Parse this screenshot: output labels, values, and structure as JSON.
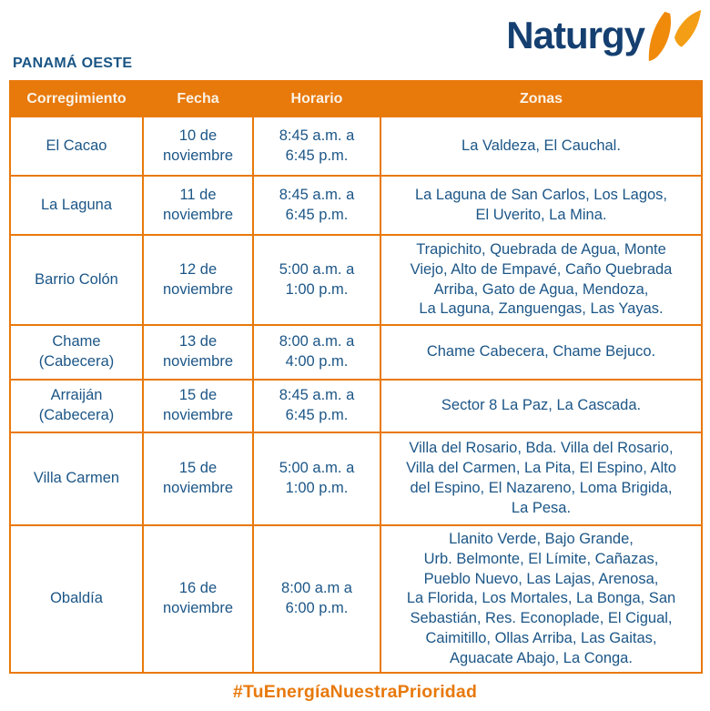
{
  "page": {
    "region_title": "PANAMÁ OESTE",
    "hashtag": "#TuEnergíaNuestraPrioridad"
  },
  "brand": {
    "logo_text": "Naturgy",
    "logo_icon": "butterfly-icon",
    "blue": "#143F70",
    "orange": "#E8790B",
    "text_blue": "#1C5687",
    "header_text": "#FAF3E6"
  },
  "table": {
    "headers": [
      "Corregimiento",
      "Fecha",
      "Horario",
      "Zonas"
    ],
    "columns": [
      "corregimiento",
      "fecha",
      "horario",
      "zonas"
    ],
    "rows": [
      {
        "corregimiento": "El Cacao",
        "fecha": "10 de\nnoviembre",
        "horario": "8:45 a.m. a\n6:45 p.m.",
        "zonas": "La Valdeza, El Cauchal."
      },
      {
        "corregimiento": "La Laguna",
        "fecha": "11 de\nnoviembre",
        "horario": "8:45 a.m. a\n6:45 p.m.",
        "zonas": "La Laguna de San Carlos, Los Lagos,\nEl Uverito, La Mina."
      },
      {
        "corregimiento": "Barrio Colón",
        "fecha": "12 de\nnoviembre",
        "horario": "5:00 a.m. a\n1:00 p.m.",
        "zonas": "Trapichito, Quebrada de Agua, Monte\nViejo, Alto de Empavé, Caño Quebrada\nArriba, Gato de Agua, Mendoza,\nLa Laguna, Zanguengas, Las Yayas."
      },
      {
        "corregimiento": "Chame\n(Cabecera)",
        "fecha": "13 de\nnoviembre",
        "horario": "8:00 a.m. a\n4:00 p.m.",
        "zonas": "Chame Cabecera, Chame Bejuco."
      },
      {
        "corregimiento": "Arraiján\n(Cabecera)",
        "fecha": "15 de\nnoviembre",
        "horario": "8:45 a.m. a\n6:45 p.m.",
        "zonas": "Sector 8 La Paz, La Cascada."
      },
      {
        "corregimiento": "Villa Carmen",
        "fecha": "15 de\nnoviembre",
        "horario": "5:00 a.m. a\n1:00 p.m.",
        "zonas": "Villa del Rosario, Bda. Villa del Rosario,\nVilla del Carmen, La Pita, El Espino, Alto\ndel Espino, El Nazareno, Loma Brigida,\nLa Pesa."
      },
      {
        "corregimiento": "Obaldía",
        "fecha": "16 de\nnoviembre",
        "horario": "8:00 a.m a\n6:00 p.m.",
        "zonas": "Llanito Verde, Bajo Grande,\nUrb. Belmonte, El Límite, Cañazas,\nPueblo Nuevo, Las Lajas, Arenosa,\nLa Florida, Los Mortales, La Bonga, San\nSebastián, Res. Econoplade, El Cigual,\nCaimitillo, Ollas Arriba, Las Gaitas,\nAguacate Abajo, La Conga."
      }
    ]
  }
}
